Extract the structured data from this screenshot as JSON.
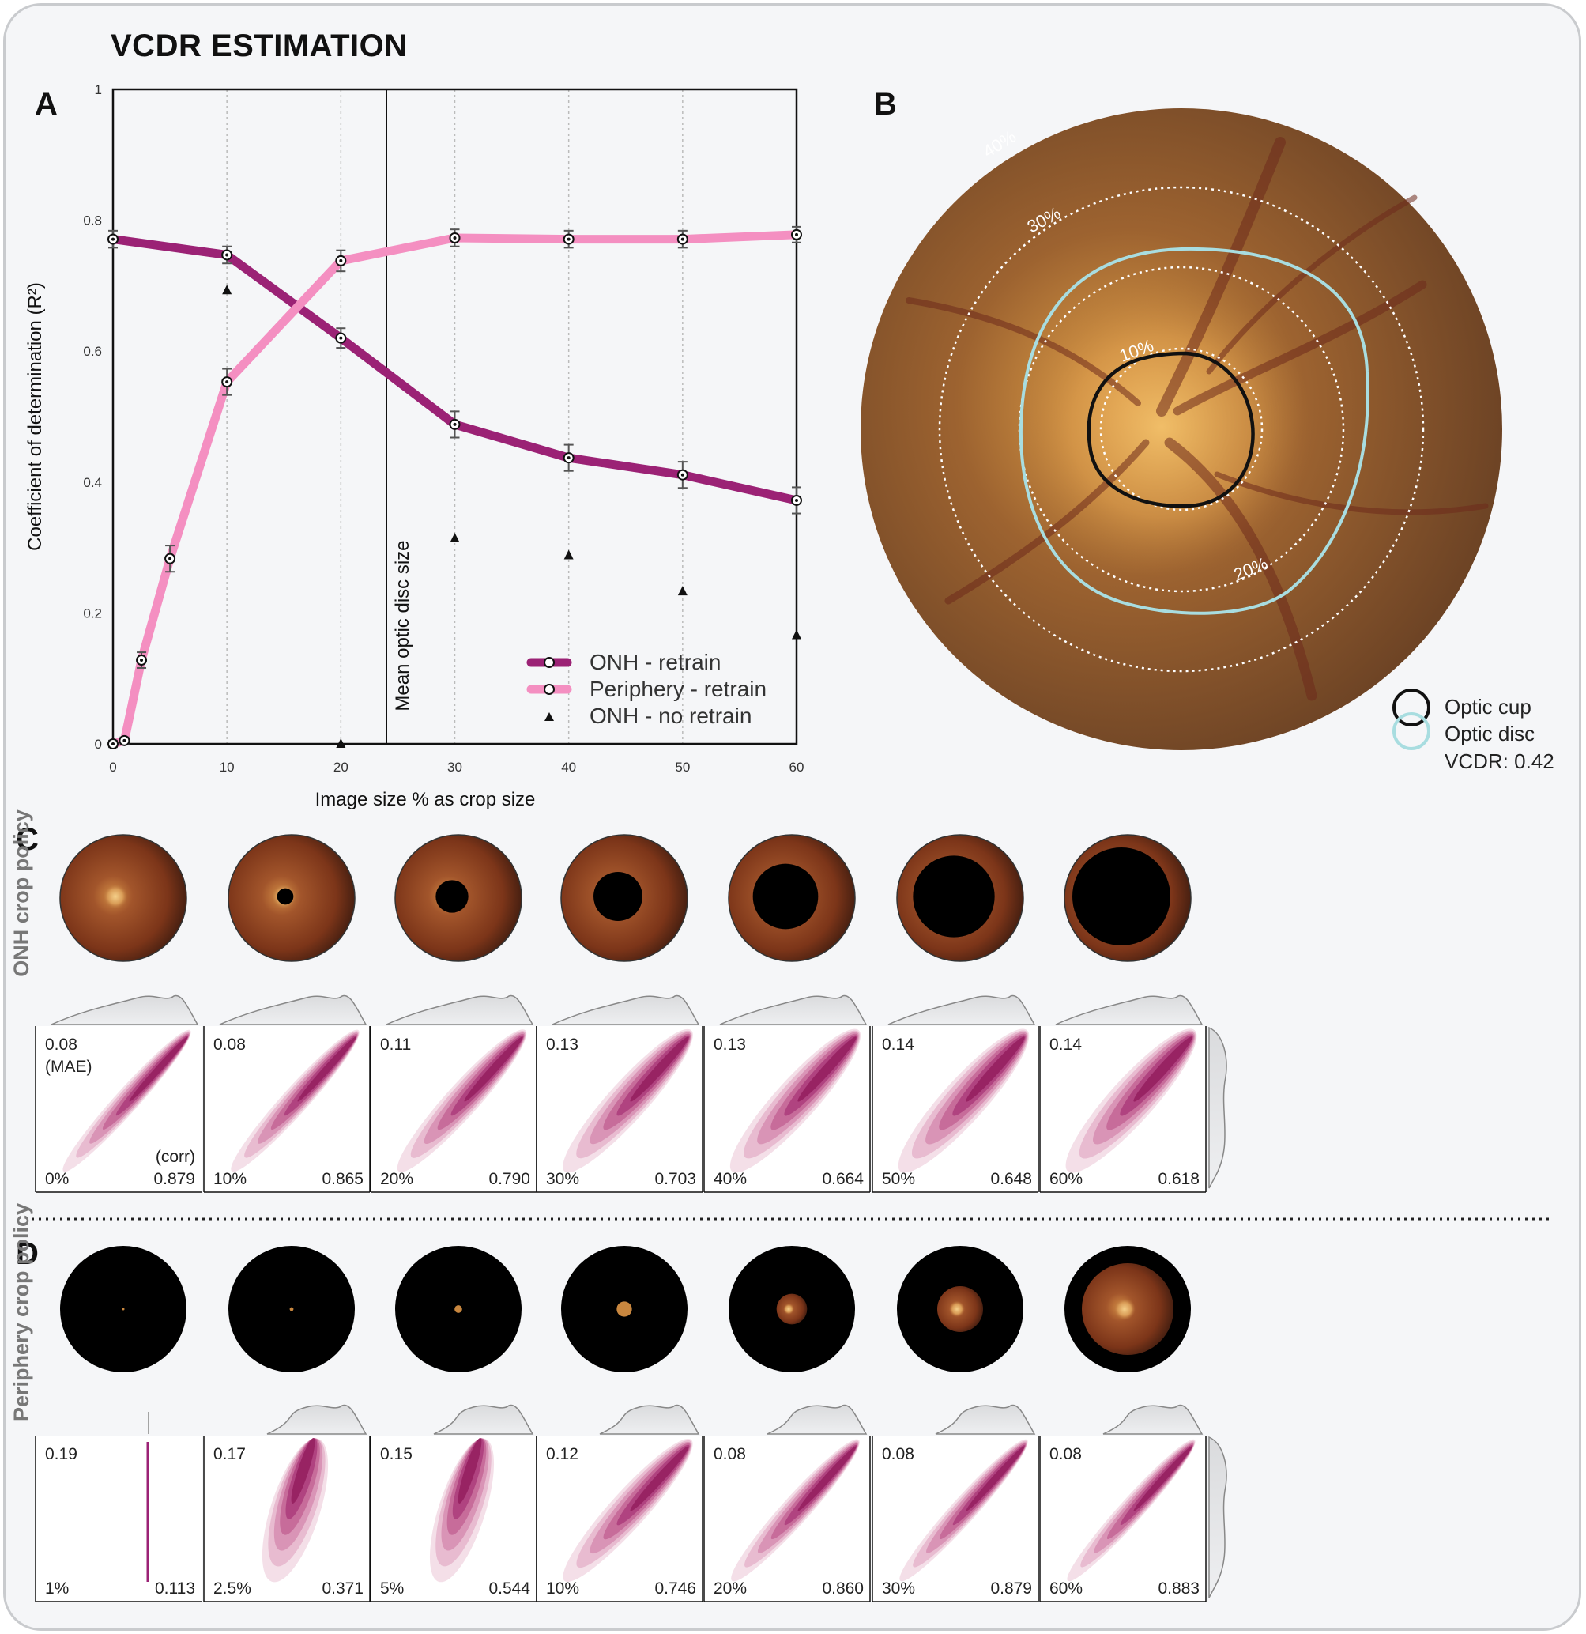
{
  "figure_title": "VCDR ESTIMATION",
  "panels": {
    "a": "A",
    "b": "B",
    "c": "C",
    "d": "D"
  },
  "chart_data": [
    {
      "type": "line",
      "panel": "A",
      "xlabel": "Image size % as crop size",
      "ylabel": "Coefficient of determination (R²)",
      "xlim": [
        0,
        60
      ],
      "ylim": [
        0,
        1
      ],
      "x_ticks": [
        "0",
        "10",
        "20",
        "30",
        "40",
        "50",
        "60"
      ],
      "y_ticks": [
        "0",
        "0.2",
        "0.4",
        "0.6",
        "0.8",
        "1"
      ],
      "grid": "vertical dotted",
      "legend_position": "bottom-right",
      "vline": {
        "x": 24,
        "label": "Mean optic disc size"
      },
      "series": [
        {
          "name": "ONH - retrain",
          "color": "#9b2275",
          "marker": "dot",
          "x": [
            0,
            10,
            20,
            30,
            40,
            50,
            60
          ],
          "y": [
            0.771,
            0.747,
            0.62,
            0.488,
            0.437,
            0.411,
            0.372
          ],
          "err": [
            0.013,
            0.013,
            0.015,
            0.02,
            0.02,
            0.02,
            0.02
          ]
        },
        {
          "name": "Periphery - retrain",
          "color": "#f48fc1",
          "marker": "dot",
          "x": [
            0,
            1,
            2.5,
            5,
            10,
            20,
            30,
            40,
            50,
            60
          ],
          "y": [
            0.0,
            0.005,
            0.128,
            0.283,
            0.553,
            0.738,
            0.773,
            0.771,
            0.771,
            0.778
          ],
          "err": [
            0.005,
            0.005,
            0.012,
            0.02,
            0.02,
            0.016,
            0.013,
            0.013,
            0.013,
            0.012
          ]
        },
        {
          "name": "ONH - no retrain",
          "color": "#111111",
          "marker": "triangle",
          "x": [
            10,
            20,
            30,
            40,
            50,
            60
          ],
          "y": [
            0.693,
            0.0,
            0.314,
            0.288,
            0.233,
            0.166
          ]
        }
      ]
    },
    {
      "type": "scatter",
      "panel": "C",
      "row_label": "ONH crop policy",
      "mae_label": "(MAE)",
      "corr_label": "(corr)",
      "items": [
        {
          "crop": "0%",
          "mae": "0.08",
          "corr": "0.879",
          "spread": 0.1
        },
        {
          "crop": "10%",
          "mae": "0.08",
          "corr": "0.865",
          "spread": 0.12
        },
        {
          "crop": "20%",
          "mae": "0.11",
          "corr": "0.790",
          "spread": 0.17
        },
        {
          "crop": "30%",
          "mae": "0.13",
          "corr": "0.703",
          "spread": 0.22
        },
        {
          "crop": "40%",
          "mae": "0.13",
          "corr": "0.664",
          "spread": 0.24
        },
        {
          "crop": "50%",
          "mae": "0.14",
          "corr": "0.648",
          "spread": 0.25
        },
        {
          "crop": "60%",
          "mae": "0.14",
          "corr": "0.618",
          "spread": 0.26
        }
      ]
    },
    {
      "type": "scatter",
      "panel": "D",
      "row_label": "Periphery crop policy",
      "items": [
        {
          "crop": "1%",
          "mae": "0.19",
          "corr": "0.113",
          "spread": 0.0
        },
        {
          "crop": "2.5%",
          "mae": "0.17",
          "corr": "0.371",
          "spread": 0.3
        },
        {
          "crop": "5%",
          "mae": "0.15",
          "corr": "0.544",
          "spread": 0.28
        },
        {
          "crop": "10%",
          "mae": "0.12",
          "corr": "0.746",
          "spread": 0.2
        },
        {
          "crop": "20%",
          "mae": "0.08",
          "corr": "0.860",
          "spread": 0.13
        },
        {
          "crop": "30%",
          "mae": "0.08",
          "corr": "0.879",
          "spread": 0.11
        },
        {
          "crop": "60%",
          "mae": "0.08",
          "corr": "0.883",
          "spread": 0.1
        }
      ]
    }
  ],
  "panel_b": {
    "ring_labels": [
      "40%",
      "30%",
      "20%",
      "10%"
    ],
    "legend": {
      "cup": "Optic cup",
      "disc": "Optic disc",
      "vcdr": "VCDR: 0.42"
    },
    "colors": {
      "cup": "#111111",
      "disc": "#a8dde0",
      "fundus": "#7a4a25"
    }
  },
  "crop_masks": {
    "C": [
      0,
      10,
      20,
      30,
      40,
      50,
      60
    ],
    "D": [
      1,
      2.5,
      5,
      10,
      20,
      30,
      60
    ]
  }
}
